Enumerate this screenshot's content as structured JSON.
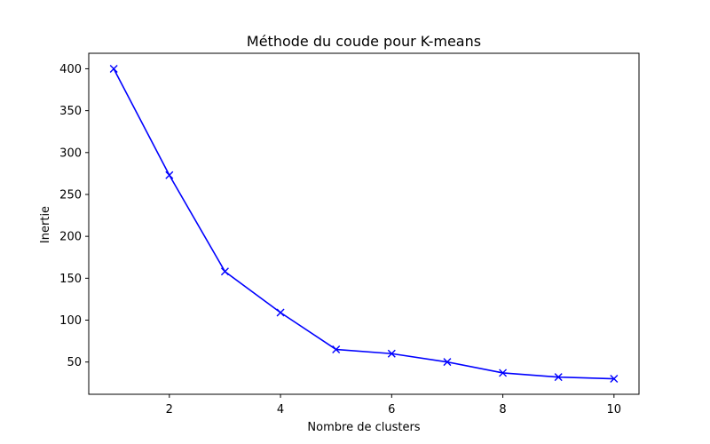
{
  "chart_data": {
    "type": "line",
    "title": "Méthode du coude pour K-means",
    "xlabel": "Nombre de clusters",
    "ylabel": "Inertie",
    "x": [
      1,
      2,
      3,
      4,
      5,
      6,
      7,
      8,
      9,
      10
    ],
    "series": [
      {
        "values": [
          400,
          273,
          158,
          109,
          65,
          60,
          50,
          37,
          32,
          30
        ],
        "color": "#0000ff",
        "marker": "x"
      }
    ],
    "xticks": [
      2,
      4,
      6,
      8,
      10
    ],
    "yticks": [
      50,
      100,
      150,
      200,
      250,
      300,
      350,
      400
    ],
    "xlim": [
      0.55,
      10.45
    ],
    "ylim": [
      11.5,
      418.5
    ],
    "grid": false,
    "legend": "none"
  }
}
